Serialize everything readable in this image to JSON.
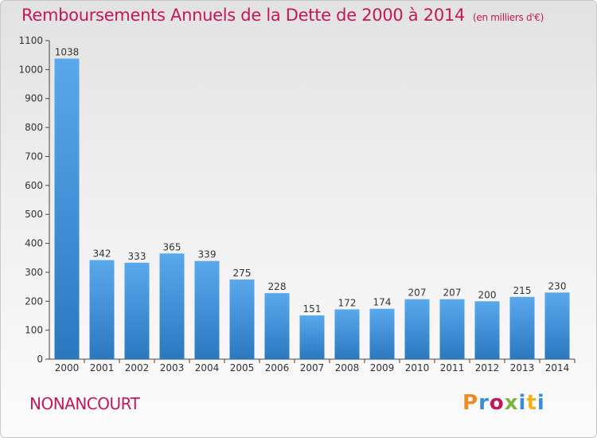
{
  "header": {
    "title": "Remboursements Annuels de la Dette de 2000 à 2014",
    "unit": "(en milliers d'€)"
  },
  "footer": {
    "commune": "NONANCOURT",
    "logo_text": "Proxiti"
  },
  "colors": {
    "title": "#c2185b",
    "bar_top": "#5aa8ec",
    "bar_bottom": "#2a78be",
    "logo": [
      "#f08a24",
      "#3a8ed8",
      "#c2185b",
      "#7cb342",
      "#3a8ed8",
      "#f0b21c",
      "#3a8ed8"
    ]
  },
  "chart_data": {
    "type": "bar",
    "title": "Remboursements Annuels de la Dette de 2000 à 2014",
    "subtitle": "(en milliers d'€)",
    "categories": [
      "2000",
      "2001",
      "2002",
      "2003",
      "2004",
      "2005",
      "2006",
      "2007",
      "2008",
      "2009",
      "2010",
      "2011",
      "2012",
      "2013",
      "2014"
    ],
    "values": [
      1038,
      342,
      333,
      365,
      339,
      275,
      228,
      151,
      172,
      174,
      207,
      207,
      200,
      215,
      230
    ],
    "ylim": [
      0,
      1100
    ],
    "yticks": [
      0,
      100,
      200,
      300,
      400,
      500,
      600,
      700,
      800,
      900,
      1000,
      1100
    ],
    "grid": false,
    "legend": "none"
  }
}
